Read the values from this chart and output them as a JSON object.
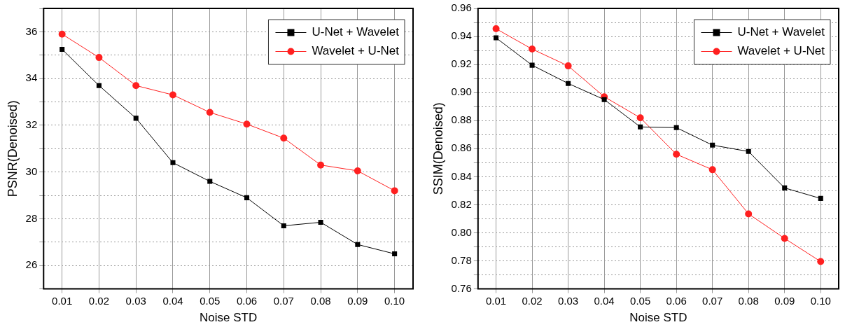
{
  "chart_data": [
    {
      "type": "line",
      "xlabel": "Noise STD",
      "ylabel": "PSNR(Denoised)",
      "categories": [
        "0.01",
        "0.02",
        "0.03",
        "0.04",
        "0.05",
        "0.06",
        "0.07",
        "0.08",
        "0.09",
        "0.10"
      ],
      "series": [
        {
          "name": "U-Net + Wavelet",
          "color": "#000000",
          "marker": "square",
          "values": [
            35.25,
            33.7,
            32.3,
            30.4,
            29.6,
            28.9,
            27.7,
            27.85,
            26.9,
            26.5
          ]
        },
        {
          "name": "Wavelet + U-Net",
          "color": "#ff2020",
          "marker": "circle",
          "values": [
            35.9,
            34.9,
            33.7,
            33.3,
            32.55,
            32.05,
            31.45,
            30.3,
            30.05,
            29.2
          ]
        }
      ],
      "ylim": [
        25,
        37
      ],
      "yticks": [
        {
          "value": 25,
          "label": null
        },
        26,
        {
          "value": 27,
          "label": null
        },
        28,
        {
          "value": 29,
          "label": null
        },
        30,
        {
          "value": 31,
          "label": null
        },
        32,
        {
          "value": 33,
          "label": null
        },
        34,
        {
          "value": 35,
          "label": null
        },
        36,
        {
          "value": 37,
          "label": null
        }
      ],
      "grid": true,
      "legend": "top right",
      "line_style": "solid"
    },
    {
      "type": "line",
      "xlabel": "Noise STD",
      "ylabel": "SSIM(Denoised)",
      "categories": [
        "0.01",
        "0.02",
        "0.03",
        "0.04",
        "0.05",
        "0.06",
        "0.07",
        "0.08",
        "0.09",
        "0.10"
      ],
      "series": [
        {
          "name": "U-Net + Wavelet",
          "color": "#000000",
          "marker": "square",
          "values": [
            0.939,
            0.9195,
            0.9065,
            0.895,
            0.8755,
            0.875,
            0.8625,
            0.858,
            0.832,
            0.8245
          ]
        },
        {
          "name": "Wavelet + U-Net",
          "color": "#ff2020",
          "marker": "circle",
          "values": [
            0.9455,
            0.931,
            0.919,
            0.897,
            0.882,
            0.856,
            0.845,
            0.8135,
            0.796,
            0.7795
          ]
        }
      ],
      "ylim": [
        0.76,
        0.96
      ],
      "yticks": [
        {
          "value": 0.76,
          "label": "0.76"
        },
        {
          "value": 0.77,
          "label": null
        },
        {
          "value": 0.78,
          "label": "0.78"
        },
        {
          "value": 0.79,
          "label": null
        },
        {
          "value": 0.8,
          "label": "0.80"
        },
        {
          "value": 0.81,
          "label": null
        },
        {
          "value": 0.82,
          "label": "0.82"
        },
        {
          "value": 0.83,
          "label": null
        },
        {
          "value": 0.84,
          "label": "0.84"
        },
        {
          "value": 0.85,
          "label": null
        },
        {
          "value": 0.86,
          "label": "0.86"
        },
        {
          "value": 0.87,
          "label": null
        },
        {
          "value": 0.88,
          "label": "0.88"
        },
        {
          "value": 0.89,
          "label": null
        },
        {
          "value": 0.9,
          "label": "0.90"
        },
        {
          "value": 0.91,
          "label": null
        },
        {
          "value": 0.92,
          "label": "0.92"
        },
        {
          "value": 0.93,
          "label": null
        },
        {
          "value": 0.94,
          "label": "0.94"
        },
        {
          "value": 0.95,
          "label": null
        },
        {
          "value": 0.96,
          "label": "0.96"
        }
      ],
      "grid": true,
      "legend": "top right",
      "line_style": "solid"
    }
  ]
}
